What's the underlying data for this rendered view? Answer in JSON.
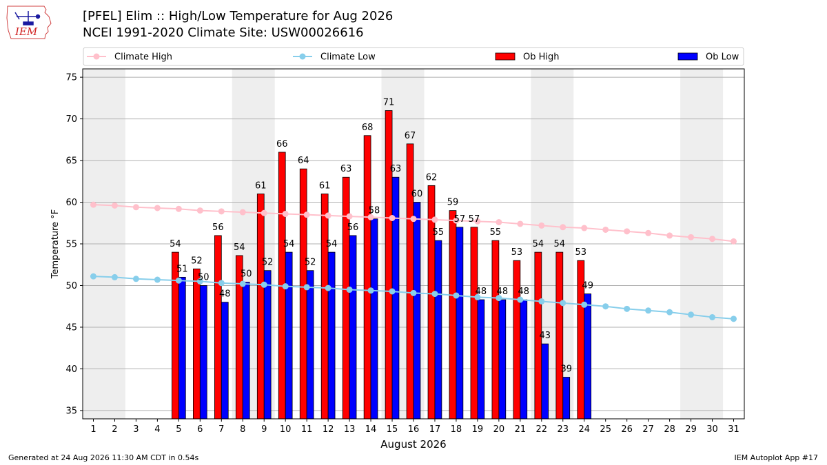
{
  "header": {
    "title_line1": "[PFEL] Elim :: High/Low Temperature for Aug 2026",
    "title_line2": "NCEI 1991-2020 Climate Site: USW00026616"
  },
  "logo": {
    "text": "IEM",
    "icon": "iem-iowa-logo"
  },
  "footer": {
    "left": "Generated at 24 Aug 2026 11:30 AM CDT in 0.54s",
    "right": "IEM Autoplot App #17"
  },
  "colors": {
    "climate_high": "#ffc0cb",
    "climate_low": "#87ceeb",
    "ob_high": "#ff0000",
    "ob_low": "#0000ff",
    "weekend_shade": "#eeeeee",
    "grid": "#b0b0b0"
  },
  "chart_data": {
    "type": "bar",
    "xlabel": "August 2026",
    "ylabel": "Temperature °F",
    "ylim": [
      34,
      76
    ],
    "yticks": [
      35,
      40,
      45,
      50,
      55,
      60,
      65,
      70,
      75
    ],
    "grid": "horizontal",
    "legend_position": "top",
    "x": [
      1,
      2,
      3,
      4,
      5,
      6,
      7,
      8,
      9,
      10,
      11,
      12,
      13,
      14,
      15,
      16,
      17,
      18,
      19,
      20,
      21,
      22,
      23,
      24,
      25,
      26,
      27,
      28,
      29,
      30,
      31
    ],
    "shaded_days": [
      [
        1,
        2
      ],
      [
        8,
        9
      ],
      [
        15,
        16
      ],
      [
        22,
        23
      ],
      [
        29,
        30
      ]
    ],
    "series": [
      {
        "name": "Climate High",
        "kind": "line",
        "values": [
          59.7,
          59.6,
          59.4,
          59.3,
          59.2,
          59.0,
          58.9,
          58.8,
          58.7,
          58.6,
          58.5,
          58.4,
          58.3,
          58.2,
          58.1,
          58.0,
          57.9,
          57.8,
          57.7,
          57.6,
          57.4,
          57.2,
          57.0,
          56.9,
          56.7,
          56.5,
          56.3,
          56.0,
          55.8,
          55.6,
          55.3
        ]
      },
      {
        "name": "Climate Low",
        "kind": "line",
        "values": [
          51.1,
          51.0,
          50.8,
          50.7,
          50.6,
          50.5,
          50.3,
          50.2,
          50.1,
          49.9,
          49.8,
          49.7,
          49.5,
          49.4,
          49.3,
          49.1,
          49.0,
          48.8,
          48.6,
          48.5,
          48.3,
          48.1,
          47.9,
          47.7,
          47.5,
          47.2,
          47.0,
          46.8,
          46.5,
          46.2,
          46.0
        ]
      },
      {
        "name": "Ob High",
        "kind": "bar",
        "values": [
          null,
          null,
          null,
          null,
          54,
          52,
          56,
          53.6,
          61,
          66,
          64,
          61,
          63,
          68,
          71,
          67,
          62,
          59,
          57,
          55.4,
          53,
          54,
          54,
          53,
          null,
          null,
          null,
          null,
          null,
          null,
          null
        ],
        "labels": [
          null,
          null,
          null,
          null,
          "54",
          "52",
          "56",
          "54",
          "61",
          "66",
          "64",
          "61",
          "63",
          "68",
          "71",
          "67",
          "62",
          "59",
          "57",
          "55",
          "53",
          "54",
          "54",
          "53",
          null,
          null,
          null,
          null,
          null,
          null,
          null
        ]
      },
      {
        "name": "Ob Low",
        "kind": "bar",
        "values": [
          null,
          null,
          null,
          null,
          51,
          50,
          48,
          50.4,
          51.8,
          54,
          51.8,
          54,
          56,
          58,
          63,
          60,
          55.4,
          57,
          48.3,
          48.3,
          48.3,
          43,
          39,
          49,
          null,
          null,
          null,
          null,
          null,
          null,
          null
        ],
        "labels": [
          null,
          null,
          null,
          null,
          "51",
          "50",
          "48",
          "50",
          "52",
          "54",
          "52",
          "54",
          "56",
          "58",
          "63",
          "60",
          "55",
          "57",
          "48",
          "48",
          "48",
          "43",
          "39",
          "49",
          null,
          null,
          null,
          null,
          null,
          null,
          null
        ]
      }
    ]
  }
}
